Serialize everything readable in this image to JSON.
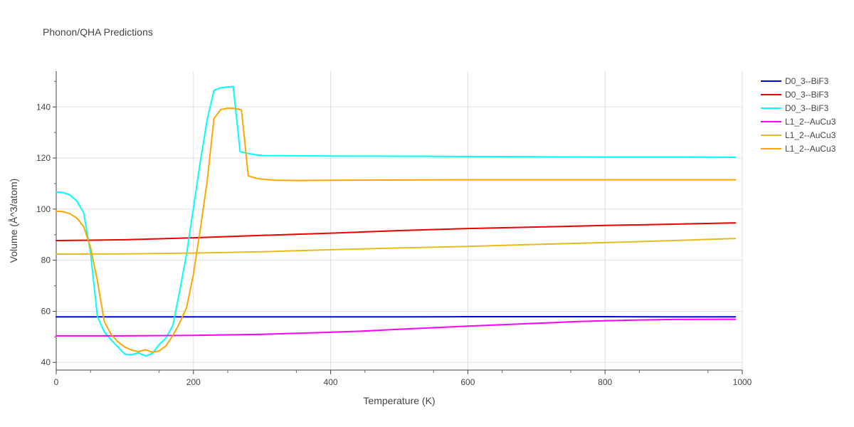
{
  "chart_data": {
    "type": "line",
    "title": "Phonon/QHA Predictions",
    "xlabel": "Temperature (K)",
    "ylabel": "Volume (Å^3/atom)",
    "xlim": [
      0,
      1000
    ],
    "ylim": [
      37,
      154
    ],
    "xticks": [
      0,
      200,
      400,
      600,
      800,
      1000
    ],
    "yticks": [
      40,
      60,
      80,
      100,
      120,
      140
    ],
    "grid": true,
    "legend_position": "right",
    "series": [
      {
        "name": "D0_3--BiF3",
        "color": "#0000ee",
        "x": [
          0,
          100,
          200,
          300,
          400,
          500,
          600,
          700,
          800,
          900,
          990
        ],
        "y": [
          57.8,
          57.8,
          57.8,
          57.8,
          57.8,
          57.8,
          57.9,
          57.9,
          57.9,
          57.8,
          57.8
        ]
      },
      {
        "name": "D0_3--BiF3",
        "color": "#ee0000",
        "x": [
          0,
          100,
          200,
          300,
          400,
          500,
          600,
          700,
          800,
          900,
          990
        ],
        "y": [
          87.7,
          88.0,
          88.8,
          89.7,
          90.6,
          91.6,
          92.4,
          93.0,
          93.6,
          94.1,
          94.6
        ]
      },
      {
        "name": "D0_3--BiF3",
        "color": "#00ffff",
        "x": [
          0,
          10,
          20,
          30,
          40,
          50,
          60,
          70,
          80,
          90,
          100,
          110,
          120,
          130,
          140,
          150,
          160,
          170,
          180,
          190,
          200,
          210,
          220,
          230,
          240,
          250,
          258,
          268,
          280,
          290,
          300,
          320,
          400,
          500,
          600,
          700,
          800,
          900,
          990
        ],
        "y": [
          106.7,
          106.5,
          105.5,
          103.2,
          98.5,
          83.0,
          58.0,
          52.0,
          48.8,
          46.0,
          43.2,
          43.0,
          43.8,
          42.5,
          43.5,
          47.0,
          49.5,
          54.5,
          68.0,
          82.5,
          100.5,
          118.5,
          135.0,
          146.5,
          147.5,
          147.8,
          148.0,
          122.5,
          121.8,
          121.3,
          121.0,
          120.9,
          120.8,
          120.7,
          120.6,
          120.5,
          120.4,
          120.4,
          120.3
        ]
      },
      {
        "name": "L1_2--AuCu3",
        "color": "#ff00ff",
        "x": [
          0,
          100,
          200,
          300,
          400,
          450,
          500,
          600,
          700,
          760,
          800,
          850,
          900,
          990
        ],
        "y": [
          50.4,
          50.4,
          50.6,
          51.0,
          51.8,
          52.3,
          53.0,
          54.2,
          55.3,
          56.0,
          56.3,
          56.6,
          56.8,
          56.9
        ]
      },
      {
        "name": "L1_2--AuCu3",
        "color": "#e6bb1e",
        "x": [
          0,
          100,
          200,
          300,
          400,
          500,
          600,
          700,
          800,
          900,
          990
        ],
        "y": [
          82.4,
          82.5,
          82.8,
          83.3,
          84.1,
          84.8,
          85.4,
          86.2,
          86.9,
          87.7,
          88.5
        ]
      },
      {
        "name": "L1_2--AuCu3",
        "color": "#ffa500",
        "x": [
          0,
          10,
          20,
          30,
          40,
          50,
          60,
          70,
          80,
          90,
          100,
          110,
          120,
          130,
          140,
          150,
          160,
          170,
          180,
          190,
          200,
          210,
          220,
          230,
          240,
          250,
          260,
          270,
          280,
          290,
          300,
          320,
          350,
          400,
          500,
          600,
          700,
          800,
          900,
          990
        ],
        "y": [
          99.2,
          99.0,
          98.2,
          96.5,
          93.2,
          85.0,
          72.0,
          56.0,
          51.0,
          48.0,
          46.0,
          44.8,
          44.2,
          45.0,
          44.0,
          44.5,
          46.5,
          50.5,
          55.5,
          61.5,
          74.5,
          92.0,
          111.0,
          135.5,
          139.0,
          139.5,
          139.4,
          138.8,
          113.0,
          112.2,
          111.7,
          111.3,
          111.2,
          111.3,
          111.4,
          111.5,
          111.5,
          111.5,
          111.5,
          111.5
        ]
      }
    ]
  }
}
